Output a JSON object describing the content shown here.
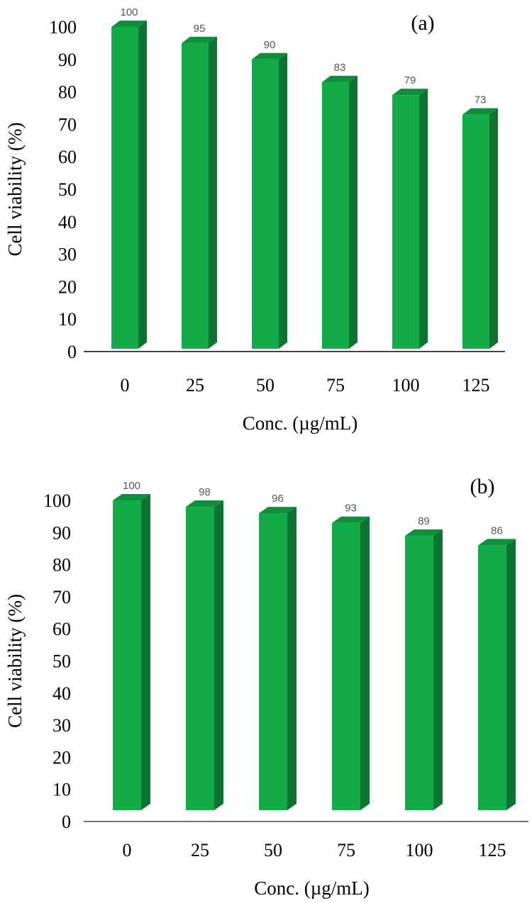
{
  "colors": {
    "bar_front": "#12AB47",
    "bar_side": "#0A7430",
    "bar_top": "#0E8F3B",
    "axis": "#444444"
  },
  "chart_data": [
    {
      "type": "bar",
      "panel_label": "(a)",
      "categories": [
        "0",
        "25",
        "50",
        "75",
        "100",
        "125"
      ],
      "values": [
        100,
        95,
        90,
        83,
        79,
        73
      ],
      "data_labels": [
        "100",
        "95",
        "90",
        "83",
        "79",
        "73"
      ],
      "xlabel": "Conc. (µg/mL)",
      "ylabel": "Cell viability (%)",
      "ylim": [
        0,
        100
      ],
      "yticks": [
        "0",
        "10",
        "20",
        "30",
        "40",
        "50",
        "60",
        "70",
        "80",
        "90",
        "100"
      ],
      "grid": false,
      "style": "3d-column"
    },
    {
      "type": "bar",
      "panel_label": "(b)",
      "categories": [
        "0",
        "25",
        "50",
        "75",
        "100",
        "125"
      ],
      "values": [
        100,
        98,
        96,
        93,
        89,
        86
      ],
      "data_labels": [
        "100",
        "98",
        "96",
        "93",
        "89",
        "86"
      ],
      "xlabel": "Conc. (µg/mL)",
      "ylabel": "Cell viability (%)",
      "ylim": [
        0,
        100
      ],
      "yticks": [
        "0",
        "10",
        "20",
        "30",
        "40",
        "50",
        "60",
        "70",
        "80",
        "90",
        "100"
      ],
      "grid": false,
      "style": "3d-column"
    }
  ]
}
